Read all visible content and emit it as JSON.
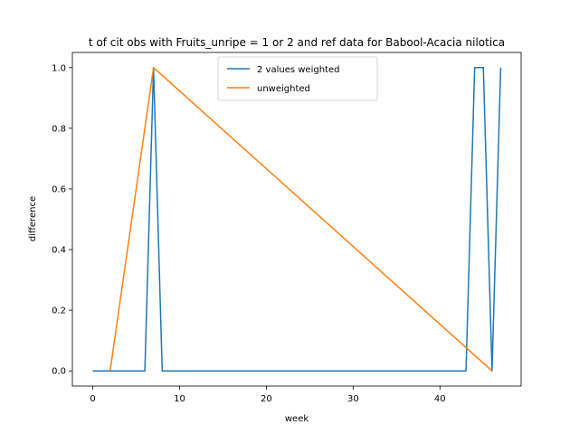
{
  "chart_data": {
    "type": "line",
    "title": "t of cit obs with Fruits_unripe = 1 or 2 and ref data for Babool-Acacia nilotica",
    "xlabel": "week",
    "ylabel": "difference",
    "xlim": [
      -2.35,
      49.35
    ],
    "ylim": [
      -0.05,
      1.05
    ],
    "xticks": [
      0,
      10,
      20,
      30,
      40
    ],
    "yticks": [
      0.0,
      0.2,
      0.4,
      0.6,
      0.8,
      1.0
    ],
    "xtick_labels": [
      "0",
      "10",
      "20",
      "30",
      "40"
    ],
    "ytick_labels": [
      "0.0",
      "0.2",
      "0.4",
      "0.6",
      "0.8",
      "1.0"
    ],
    "legend_position": "upper center",
    "series": [
      {
        "name": "2 values weighted",
        "color": "#1f77b4",
        "x": [
          0,
          1,
          2,
          3,
          4,
          5,
          6,
          7,
          8,
          9,
          10,
          11,
          12,
          13,
          14,
          15,
          16,
          17,
          18,
          19,
          20,
          21,
          22,
          23,
          24,
          25,
          26,
          27,
          28,
          29,
          30,
          31,
          32,
          33,
          34,
          35,
          36,
          37,
          38,
          39,
          40,
          41,
          42,
          43,
          44,
          45,
          46,
          47
        ],
        "y": [
          0,
          0,
          0,
          0,
          0,
          0,
          0,
          1,
          0,
          0,
          0,
          0,
          0,
          0,
          0,
          0,
          0,
          0,
          0,
          0,
          0,
          0,
          0,
          0,
          0,
          0,
          0,
          0,
          0,
          0,
          0,
          0,
          0,
          0,
          0,
          0,
          0,
          0,
          0,
          0,
          0,
          0,
          0,
          0,
          1,
          1,
          0,
          1
        ]
      },
      {
        "name": "unweighted",
        "color": "#ff7f0e",
        "x": [
          2,
          7,
          46
        ],
        "y": [
          0,
          1,
          0
        ]
      }
    ]
  }
}
